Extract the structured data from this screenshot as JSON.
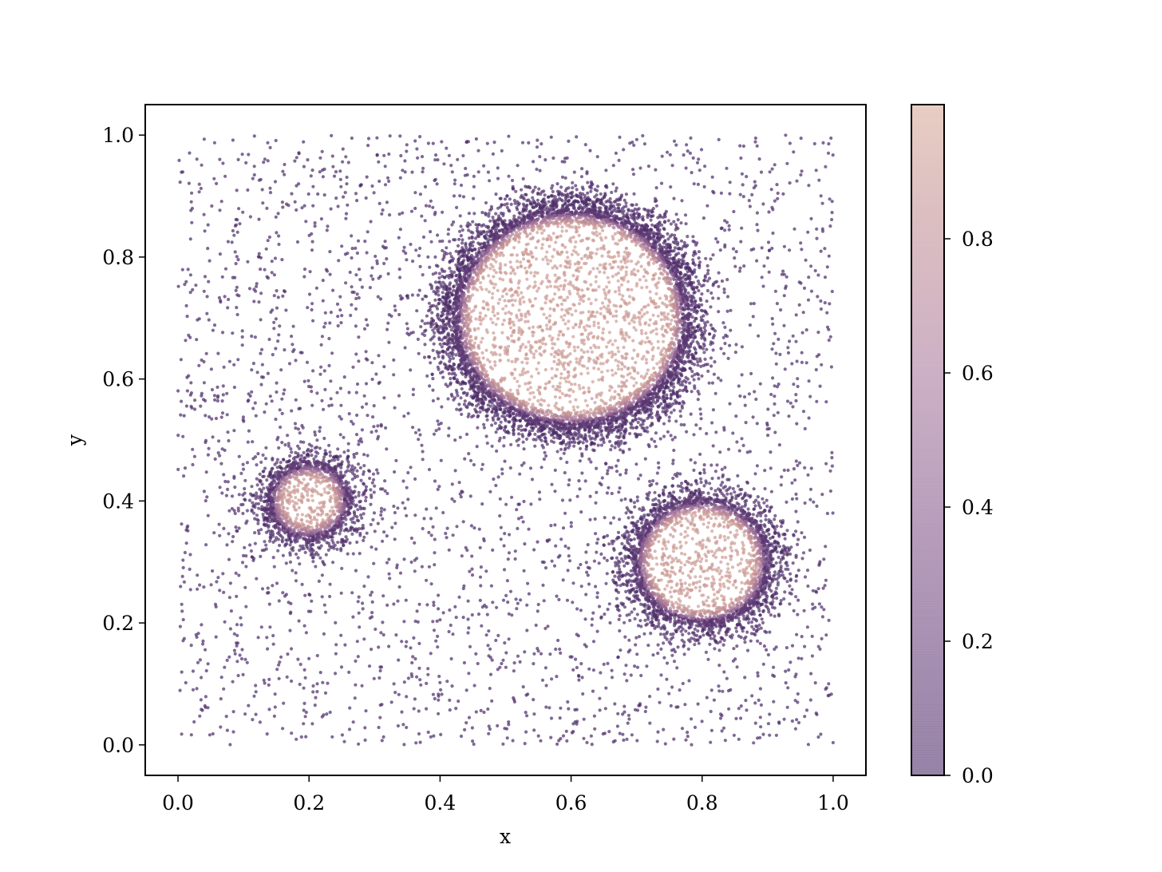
{
  "chart_data": {
    "type": "scatter",
    "title": "",
    "xlabel": "x",
    "ylabel": "y",
    "xlim": [
      -0.05,
      1.05
    ],
    "ylim": [
      -0.05,
      1.05
    ],
    "x_ticks": [
      "0.0",
      "0.2",
      "0.4",
      "0.6",
      "0.8",
      "1.0"
    ],
    "y_ticks": [
      "0.0",
      "0.2",
      "0.4",
      "0.6",
      "0.8",
      "1.0"
    ],
    "grid": false,
    "legend": "none",
    "colorbar": {
      "position": "right",
      "range": [
        0.0,
        1.0
      ],
      "ticks": [
        "0.0",
        "0.2",
        "0.4",
        "0.6",
        "0.8"
      ],
      "colormap": [
        "#4a2a68",
        "#7a4f86",
        "#a8789c",
        "#c59294",
        "#d7aa98"
      ]
    },
    "point_opacity": 0.7,
    "background_points": {
      "count": 2600,
      "value": 0.0,
      "x_range": [
        0.0,
        1.0
      ],
      "y_range": [
        0.0,
        1.0
      ]
    },
    "clusters": [
      {
        "center": [
          0.6,
          0.7
        ],
        "radius": 0.175,
        "interior_value": 0.85
      },
      {
        "center": [
          0.2,
          0.4
        ],
        "radius": 0.06,
        "interior_value": 0.85
      },
      {
        "center": [
          0.8,
          0.3
        ],
        "radius": 0.1,
        "interior_value": 0.85
      }
    ]
  }
}
